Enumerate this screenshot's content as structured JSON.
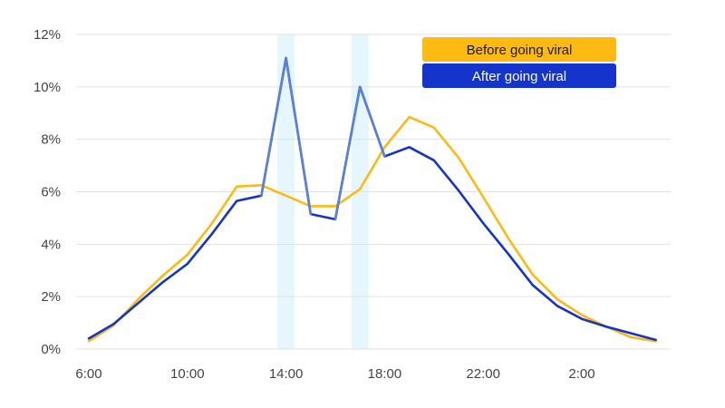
{
  "chart_data": {
    "type": "line",
    "title": "",
    "xlabel": "",
    "ylabel": "",
    "x": [
      "6:00",
      "7:00",
      "8:00",
      "9:00",
      "10:00",
      "11:00",
      "12:00",
      "13:00",
      "14:00",
      "15:00",
      "16:00",
      "17:00",
      "18:00",
      "19:00",
      "20:00",
      "21:00",
      "22:00",
      "23:00",
      "0:00",
      "1:00",
      "2:00",
      "3:00",
      "4:00",
      "5:00"
    ],
    "x_tick_labels": [
      "6:00",
      "10:00",
      "14:00",
      "18:00",
      "22:00",
      "2:00"
    ],
    "x_tick_hours": [
      6,
      10,
      14,
      18,
      22,
      26
    ],
    "ylim": [
      0,
      12
    ],
    "y_ticks": [
      0,
      2,
      4,
      6,
      8,
      10,
      12
    ],
    "y_tick_labels": [
      "0%",
      "2%",
      "4%",
      "6%",
      "8%",
      "10%",
      "12%"
    ],
    "grid": true,
    "legend_position": "top-right",
    "highlight_bands": [
      {
        "label": "14:00",
        "from_hour": 13.65,
        "to_hour": 14.35
      },
      {
        "label": "17:00",
        "from_hour": 16.65,
        "to_hour": 17.35
      }
    ],
    "series": [
      {
        "name": "Before going viral",
        "color": "#FDBA12",
        "values": [
          0.3,
          0.9,
          1.9,
          2.8,
          3.6,
          4.8,
          6.2,
          6.25,
          5.85,
          5.45,
          5.45,
          6.1,
          7.7,
          8.85,
          8.45,
          7.3,
          5.8,
          4.25,
          2.85,
          1.9,
          1.3,
          0.85,
          0.45,
          0.3
        ]
      },
      {
        "name": "After going viral",
        "color": "#1434CB",
        "values": [
          0.4,
          0.95,
          1.75,
          2.55,
          3.25,
          4.4,
          5.65,
          5.85,
          11.1,
          5.15,
          4.95,
          10.0,
          7.35,
          7.7,
          7.2,
          6.05,
          4.8,
          3.65,
          2.45,
          1.65,
          1.15,
          0.85,
          0.6,
          0.35
        ]
      }
    ]
  },
  "legend": {
    "before_label": "Before going viral",
    "after_label": "After going viral"
  },
  "colors": {
    "before": "#FDBA12",
    "after": "#1434CB",
    "highlight_band": "#E6F6FD",
    "grid": "#E2E2E2",
    "spike_line": "#5B7FDB"
  }
}
